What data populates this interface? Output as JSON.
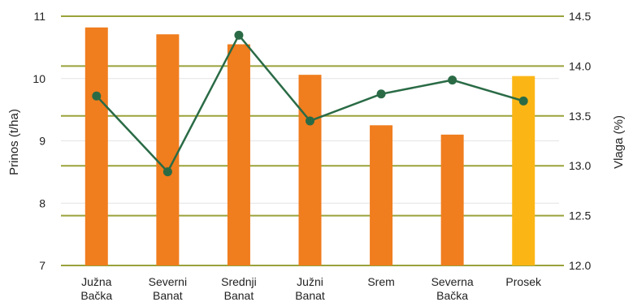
{
  "chart_data": {
    "type": "bar",
    "categories": [
      [
        "Južna",
        "Bačka"
      ],
      [
        "Severni",
        "Banat"
      ],
      [
        "Srednji",
        "Banat"
      ],
      [
        "Južni",
        "Banat"
      ],
      [
        "Srem"
      ],
      [
        "Severna",
        "Bačka"
      ],
      [
        "Prosek"
      ]
    ],
    "ylabel": "Prinos (t/ha)",
    "y2label": "Vlaga (%)",
    "ylim": [
      7,
      11
    ],
    "y2lim": [
      12.0,
      14.5
    ],
    "yticks": [
      "7",
      "8",
      "9",
      "10",
      "11"
    ],
    "y2ticks": [
      "12.0",
      "12.5",
      "13.0",
      "13.5",
      "14.0",
      "14.5"
    ],
    "series": [
      {
        "type": "bar",
        "axis": "left",
        "values": [
          10.82,
          10.71,
          10.55,
          10.06,
          9.25,
          9.1,
          10.04
        ],
        "color": "#f07d1e",
        "highlight_color": "#fbb616",
        "highlight_index": 6
      },
      {
        "type": "line",
        "axis": "right",
        "values": [
          13.7,
          12.94,
          14.31,
          13.45,
          13.72,
          13.86,
          13.65
        ],
        "color": "#2a6b46"
      }
    ],
    "grid": true,
    "legend": "none"
  }
}
